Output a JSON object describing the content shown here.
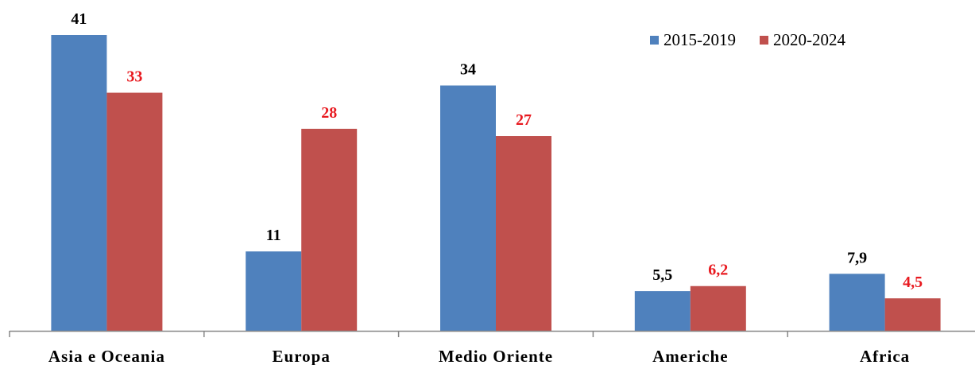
{
  "chart_data": {
    "type": "bar",
    "categories": [
      "Asia e Oceania",
      "Europa",
      "Medio Oriente",
      "Americhe",
      "Africa"
    ],
    "series": [
      {
        "name": "2015-2019",
        "color": "#4F81BD",
        "label_color": "#000000",
        "values": [
          41,
          11,
          34,
          5.5,
          7.9
        ],
        "labels": [
          "41",
          "11",
          "34",
          "5,5",
          "7,9"
        ]
      },
      {
        "name": "2020-2024",
        "color": "#C0504D",
        "label_color": "#E8191F",
        "values": [
          33,
          28,
          27,
          6.2,
          4.5
        ],
        "labels": [
          "33",
          "28",
          "27",
          "6,2",
          "4,5"
        ]
      }
    ],
    "ylim": [
      0,
      41
    ],
    "legend_position": "top-right",
    "grid": false
  }
}
